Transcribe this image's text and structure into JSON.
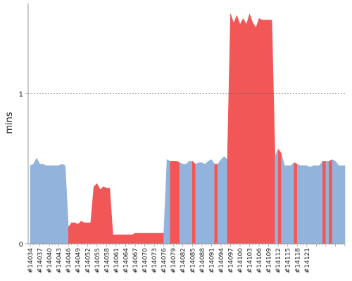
{
  "chart_data": {
    "type": "area",
    "title": "",
    "xlabel": "",
    "ylabel": "mins",
    "ylim": [
      0,
      1.6
    ],
    "yticks": [
      0,
      1
    ],
    "grid": true,
    "legend": "none",
    "x_first_build": 14034,
    "x_tick_labels": [
      "#14034",
      "#14037",
      "#14040",
      "#14043",
      "#14046",
      "#14049",
      "#14052",
      "#14055",
      "#14058",
      "#14061",
      "#14064",
      "#14067",
      "#14070",
      "#14073",
      "#14076",
      "#14079",
      "#14082",
      "#14085",
      "#14088",
      "#14091",
      "#14094",
      "#14097",
      "#14100",
      "#14103",
      "#14106",
      "#14109",
      "#14112",
      "#14115",
      "#14118",
      "#14121"
    ],
    "series": [
      {
        "color_passed": "#92b4dc",
        "color_failed": "#f25757",
        "values": [
          0.52,
          0.53,
          0.57,
          0.53,
          0.53,
          0.52,
          0.52,
          0.52,
          0.52,
          0.52,
          0.53,
          0.52,
          0.11,
          0.14,
          0.14,
          0.13,
          0.15,
          0.14,
          0.14,
          0.14,
          0.38,
          0.4,
          0.36,
          0.38,
          0.37,
          0.37,
          0.06,
          0.06,
          0.06,
          0.06,
          0.06,
          0.06,
          0.06,
          0.07,
          0.07,
          0.07,
          0.07,
          0.07,
          0.07,
          0.07,
          0.07,
          0.07,
          0.07,
          0.56,
          0.55,
          0.55,
          0.55,
          0.54,
          0.53,
          0.53,
          0.55,
          0.55,
          0.53,
          0.54,
          0.54,
          0.53,
          0.55,
          0.56,
          0.53,
          0.53,
          0.56,
          0.58,
          0.56,
          1.53,
          1.47,
          1.52,
          1.46,
          1.5,
          1.46,
          1.53,
          1.47,
          1.44,
          1.5,
          1.49,
          1.49,
          1.49,
          1.49,
          0.58,
          0.63,
          0.6,
          0.52,
          0.52,
          0.52,
          0.54,
          0.53,
          0.52,
          0.52,
          0.52,
          0.51,
          0.52,
          0.52,
          0.52,
          0.55,
          0.55,
          0.55,
          0.56,
          0.55,
          0.52,
          0.52,
          0.52
        ],
        "status": [
          "pass",
          "pass",
          "pass",
          "pass",
          "pass",
          "pass",
          "pass",
          "pass",
          "pass",
          "pass",
          "pass",
          "pass",
          "fail",
          "fail",
          "fail",
          "fail",
          "fail",
          "fail",
          "fail",
          "fail",
          "fail",
          "fail",
          "fail",
          "fail",
          "fail",
          "fail",
          "fail",
          "fail",
          "fail",
          "fail",
          "fail",
          "fail",
          "fail",
          "fail",
          "fail",
          "fail",
          "fail",
          "fail",
          "fail",
          "fail",
          "fail",
          "fail",
          "pass",
          "pass",
          "fail",
          "fail",
          "fail",
          "pass",
          "pass",
          "pass",
          "pass",
          "fail",
          "pass",
          "pass",
          "pass",
          "pass",
          "pass",
          "pass",
          "fail",
          "pass",
          "pass",
          "pass",
          "fail",
          "fail",
          "fail",
          "fail",
          "fail",
          "fail",
          "fail",
          "fail",
          "fail",
          "fail",
          "fail",
          "fail",
          "fail",
          "fail",
          "fail",
          "pass",
          "fail",
          "pass",
          "pass",
          "pass",
          "pass",
          "fail",
          "pass",
          "pass",
          "pass",
          "pass",
          "pass",
          "pass",
          "pass",
          "pass",
          "fail",
          "pass",
          "fail",
          "pass",
          "pass",
          "pass",
          "pass",
          "pass"
        ]
      }
    ]
  }
}
